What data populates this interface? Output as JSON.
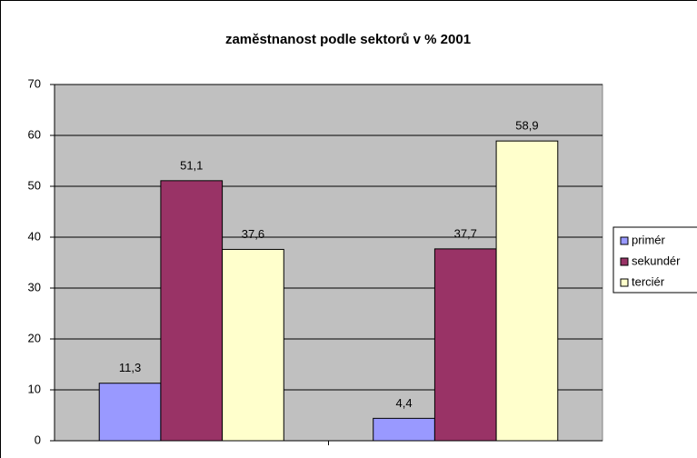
{
  "chart_data": {
    "type": "bar",
    "title": "zaměstnanost podle sektorů v %  2001",
    "categories": [
      null,
      null
    ],
    "series": [
      {
        "name": "primér",
        "color": "#9999ff",
        "values": [
          11.3,
          4.4
        ],
        "value_labels": [
          "11,3",
          "4,4"
        ]
      },
      {
        "name": "sekundér",
        "color": "#993366",
        "values": [
          51.1,
          37.7
        ],
        "value_labels": [
          "51,1",
          "37,7"
        ]
      },
      {
        "name": "terciér",
        "color": "#ffffcc",
        "values": [
          37.6,
          58.9
        ],
        "value_labels": [
          "37,6",
          "58,9"
        ]
      }
    ],
    "ylim": [
      0,
      70
    ],
    "yticks": [
      0,
      10,
      20,
      30,
      40,
      50,
      60,
      70
    ],
    "grid": true,
    "legend": "right",
    "plot_background": "#c0c0c0"
  }
}
